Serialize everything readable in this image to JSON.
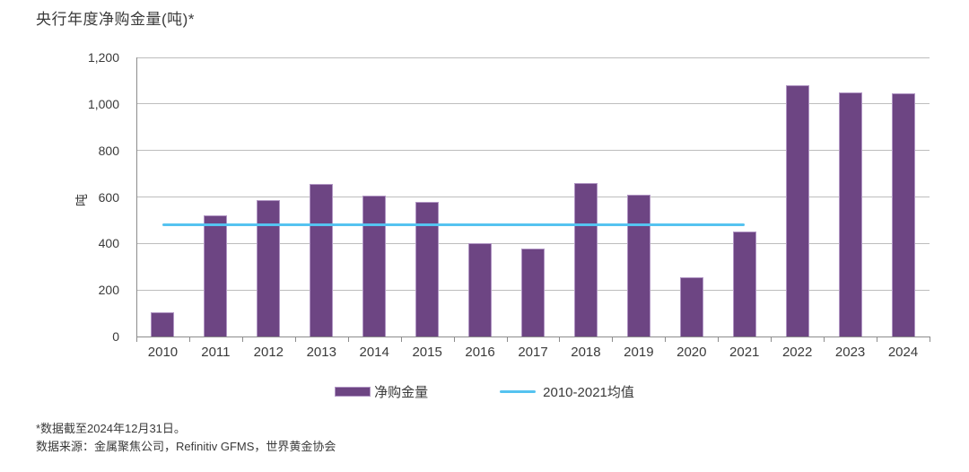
{
  "title": "央行年度净购金量(吨)*",
  "chart_data": {
    "type": "bar",
    "title": "央行年度净购金量(吨)*",
    "ylabel": "吨",
    "ylim": [
      0,
      1200
    ],
    "ytick_step": 200,
    "ytick_labels": [
      "0",
      "200",
      "400",
      "600",
      "800",
      "1,000",
      "1,200"
    ],
    "grid": true,
    "legend_position": "bottom",
    "categories": [
      "2010",
      "2011",
      "2012",
      "2013",
      "2014",
      "2015",
      "2016",
      "2017",
      "2018",
      "2019",
      "2020",
      "2021",
      "2022",
      "2023",
      "2024"
    ],
    "series": [
      {
        "name": "净购金量",
        "type": "bar",
        "color": "#6d4583",
        "values": [
          105,
          520,
          585,
          655,
          605,
          580,
          400,
          380,
          660,
          610,
          255,
          450,
          1080,
          1050,
          1045
        ]
      },
      {
        "name": "2010-2021均值",
        "type": "line",
        "color": "#55c3f0",
        "value": 482,
        "from": "2010",
        "to": "2021"
      }
    ]
  },
  "footnotes": {
    "asof": "*数据截至2024年12月31日。",
    "source": "数据来源：金属聚焦公司，Refinitiv GFMS，世界黄金协会"
  },
  "colors": {
    "bar": "#6d4583",
    "bar_border": "#b095c3",
    "average_line": "#55c3f0",
    "gridline": "#bdbdbd",
    "axis": "#8c8c8c",
    "text": "#3a3a3a"
  }
}
